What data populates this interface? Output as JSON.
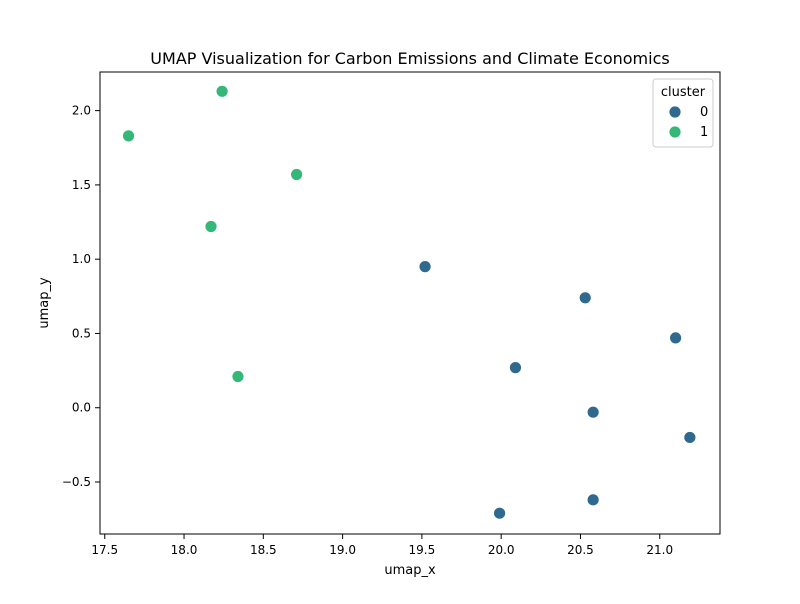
{
  "chart_data": {
    "type": "scatter",
    "title": "UMAP Visualization for Carbon Emissions and Climate Economics",
    "xlabel": "umap_x",
    "ylabel": "umap_y",
    "xlim": [
      17.47,
      21.38
    ],
    "ylim": [
      -0.85,
      2.26
    ],
    "xticks": [
      17.5,
      18.0,
      18.5,
      19.0,
      19.5,
      20.0,
      20.5,
      21.0
    ],
    "xtick_labels": [
      "17.5",
      "18.0",
      "18.5",
      "19.0",
      "19.5",
      "20.0",
      "20.5",
      "21.0"
    ],
    "yticks": [
      -0.5,
      0.0,
      0.5,
      1.0,
      1.5,
      2.0
    ],
    "ytick_labels": [
      "−0.5",
      "0.0",
      "0.5",
      "1.0",
      "1.5",
      "2.0"
    ],
    "grid": false,
    "legend": {
      "title": "cluster",
      "placement": "top-right"
    },
    "series": [
      {
        "name": "0",
        "color": "#30698e",
        "points": [
          {
            "x": 19.52,
            "y": 0.95
          },
          {
            "x": 20.53,
            "y": 0.74
          },
          {
            "x": 21.1,
            "y": 0.47
          },
          {
            "x": 20.09,
            "y": 0.27
          },
          {
            "x": 20.58,
            "y": -0.03
          },
          {
            "x": 21.19,
            "y": -0.2
          },
          {
            "x": 20.58,
            "y": -0.62
          },
          {
            "x": 19.99,
            "y": -0.71
          }
        ]
      },
      {
        "name": "1",
        "color": "#35b778",
        "points": [
          {
            "x": 18.24,
            "y": 2.13
          },
          {
            "x": 17.65,
            "y": 1.83
          },
          {
            "x": 18.71,
            "y": 1.57
          },
          {
            "x": 18.17,
            "y": 1.22
          },
          {
            "x": 18.34,
            "y": 0.21
          }
        ]
      }
    ]
  }
}
